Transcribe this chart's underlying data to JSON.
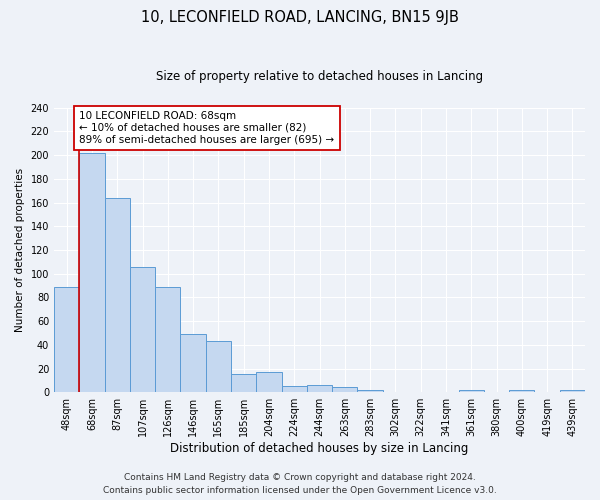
{
  "title": "10, LECONFIELD ROAD, LANCING, BN15 9JB",
  "subtitle": "Size of property relative to detached houses in Lancing",
  "xlabel": "Distribution of detached houses by size in Lancing",
  "ylabel": "Number of detached properties",
  "bin_labels": [
    "48sqm",
    "68sqm",
    "87sqm",
    "107sqm",
    "126sqm",
    "146sqm",
    "165sqm",
    "185sqm",
    "204sqm",
    "224sqm",
    "244sqm",
    "263sqm",
    "283sqm",
    "302sqm",
    "322sqm",
    "341sqm",
    "361sqm",
    "380sqm",
    "400sqm",
    "419sqm",
    "439sqm"
  ],
  "bar_values": [
    89,
    202,
    164,
    106,
    89,
    49,
    43,
    15,
    17,
    5,
    6,
    4,
    2,
    0,
    0,
    0,
    2,
    0,
    2,
    0,
    2
  ],
  "bar_color": "#c5d8f0",
  "bar_edge_color": "#5b9bd5",
  "vline_color": "#cc0000",
  "vline_x": 0.5,
  "annotation_line1": "10 LECONFIELD ROAD: 68sqm",
  "annotation_line2": "← 10% of detached houses are smaller (82)",
  "annotation_line3": "89% of semi-detached houses are larger (695) →",
  "annotation_box_color": "#ffffff",
  "annotation_box_edge": "#cc0000",
  "ylim": [
    0,
    240
  ],
  "yticks": [
    0,
    20,
    40,
    60,
    80,
    100,
    120,
    140,
    160,
    180,
    200,
    220,
    240
  ],
  "footer1": "Contains HM Land Registry data © Crown copyright and database right 2024.",
  "footer2": "Contains public sector information licensed under the Open Government Licence v3.0.",
  "background_color": "#eef2f8",
  "grid_color": "#ffffff",
  "title_fontsize": 10.5,
  "subtitle_fontsize": 8.5,
  "xlabel_fontsize": 8.5,
  "ylabel_fontsize": 7.5,
  "tick_fontsize": 7,
  "annotation_fontsize": 7.5,
  "footer_fontsize": 6.5
}
